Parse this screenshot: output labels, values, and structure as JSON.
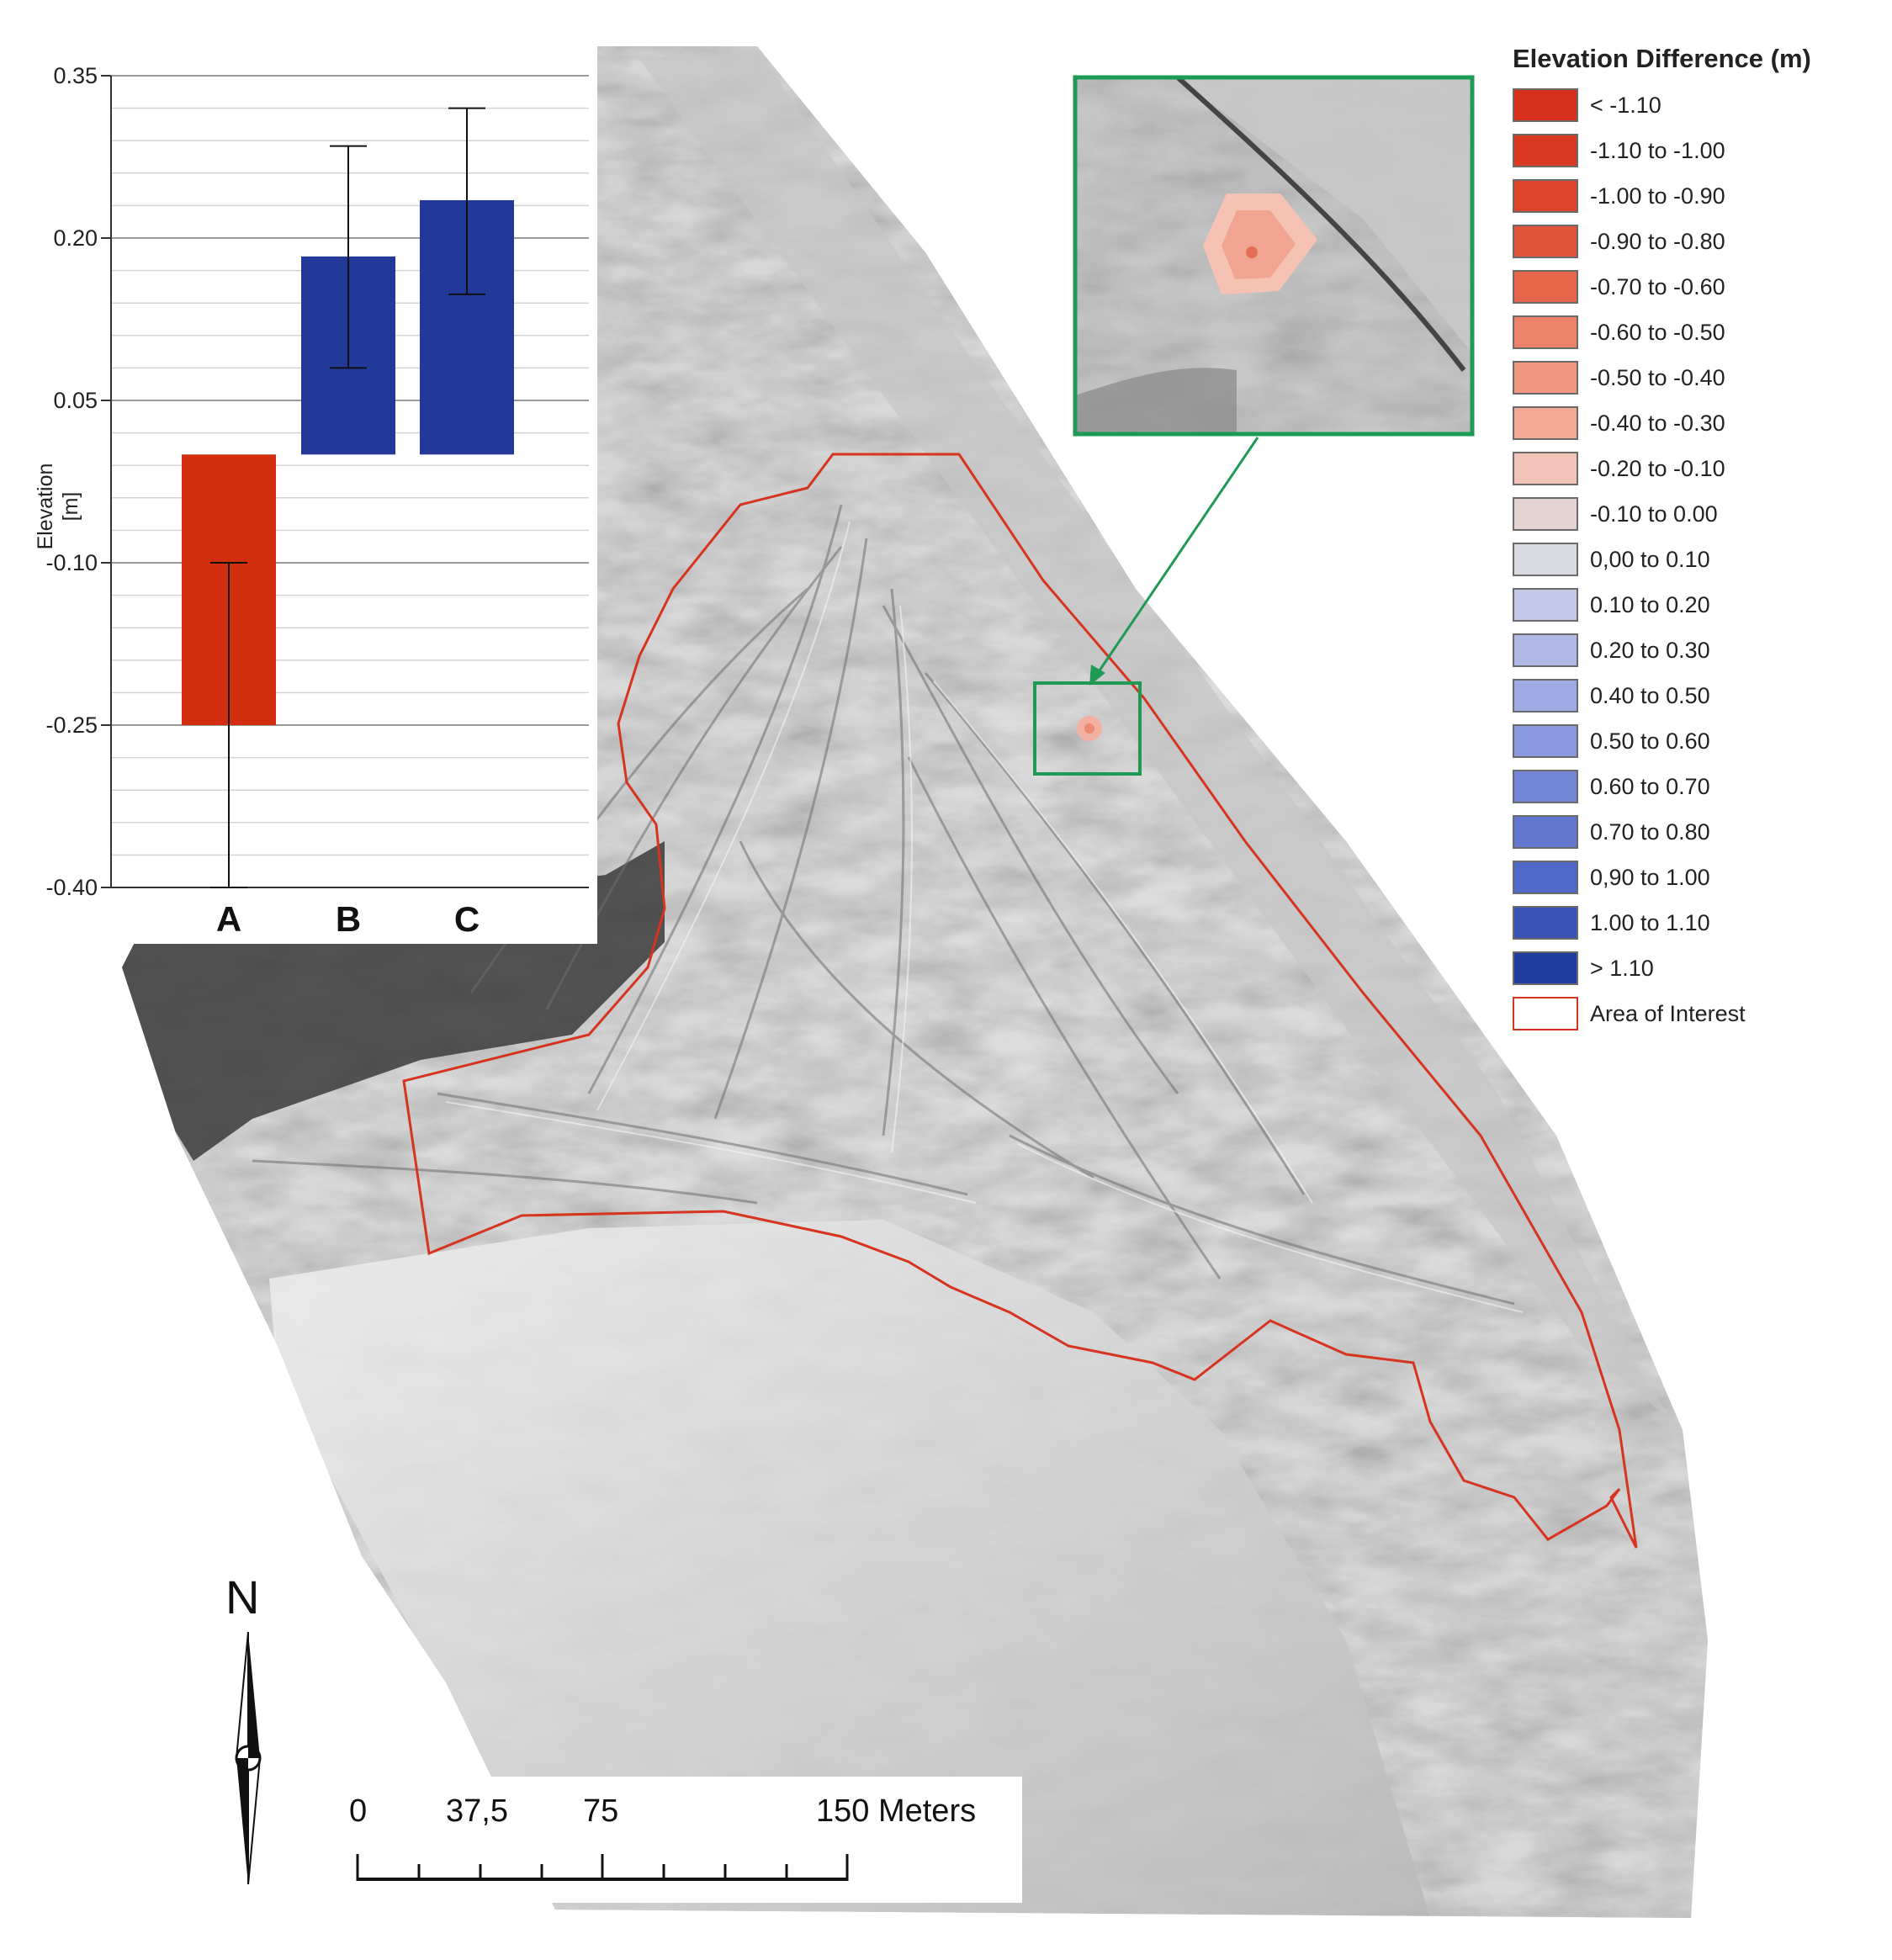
{
  "legend": {
    "title": "Elevation Difference (m)",
    "items": [
      {
        "label": "< -1.10",
        "color": "#d6301a"
      },
      {
        "label": "-1.10 to -1.00",
        "color": "#d8391f"
      },
      {
        "label": "-1.00 to -0.90",
        "color": "#dc4527"
      },
      {
        "label": "-0.90 to -0.80",
        "color": "#e0553a"
      },
      {
        "label": "-0.70 to -0.60",
        "color": "#e5664a"
      },
      {
        "label": "-0.60 to -0.50",
        "color": "#ec8268"
      },
      {
        "label": "-0.50 to -0.40",
        "color": "#f09780"
      },
      {
        "label": "-0.40 to -0.30",
        "color": "#f4aa96"
      },
      {
        "label": "-0.20 to -0.10",
        "color": "#f2c3b7"
      },
      {
        "label": "-0.10 to 0.00",
        "color": "#e4d3d2"
      },
      {
        "label": "0,00 to 0.10",
        "color": "#d9dae2"
      },
      {
        "label": "0.10 to 0.20",
        "color": "#c4c9e8"
      },
      {
        "label": "0.20 to 0.30",
        "color": "#b1b9e6"
      },
      {
        "label": "0.40 to 0.50",
        "color": "#9daae3"
      },
      {
        "label": "0.50 to 0.60",
        "color": "#8a9ade"
      },
      {
        "label": "0.60 to 0.70",
        "color": "#7385d6"
      },
      {
        "label": "0.70 to 0.80",
        "color": "#6377cf"
      },
      {
        "label": "0,90 to 1.00",
        "color": "#5068c7"
      },
      {
        "label": "1.00 to 1.10",
        "color": "#3a53b7"
      },
      {
        "label": "> 1.10",
        "color": "#1f3d9e"
      },
      {
        "label": "Area of Interest",
        "color": "#ffffff",
        "outline": "#d6341f"
      }
    ]
  },
  "chart_data": {
    "type": "bar",
    "categories": [
      "A",
      "B",
      "C"
    ],
    "values": [
      -0.25,
      0.183,
      0.235
    ],
    "error_high": [
      -0.1,
      0.285,
      0.32
    ],
    "error_low": [
      -0.4,
      0.08,
      0.148
    ],
    "colors": [
      "#d22d0e",
      "#23399a",
      "#23399a"
    ],
    "ylabel": "Elevation\n[m]",
    "ylim": [
      -0.4,
      0.35
    ],
    "yticks": [
      "0.35",
      "0.20",
      "0.05",
      "-0.10",
      "-0.25",
      "-0.40"
    ],
    "grid": true
  },
  "scale": {
    "labels": [
      "0",
      "37,5",
      "75",
      "150 Meters"
    ]
  },
  "north": {
    "label": "N"
  },
  "colors": {
    "aoi_outline": "#d6341f",
    "inset_frame": "#1e9a55",
    "hillshade_dark": "#2a2a2a",
    "hillshade_mid": "#a8a8a8",
    "hillshade_light": "#e4e4e4"
  }
}
